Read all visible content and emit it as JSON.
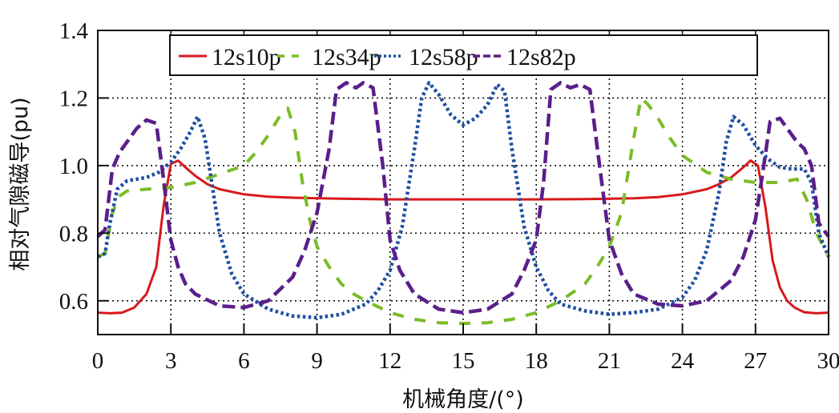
{
  "chart_data": {
    "type": "line",
    "title": "",
    "xlabel": "机械角度/(°)",
    "ylabel": "相对气隙磁导(pu)",
    "xlim": [
      0,
      30
    ],
    "ylim": [
      0.5,
      1.4
    ],
    "xticks": [
      0,
      3,
      6,
      9,
      12,
      15,
      18,
      21,
      24,
      27,
      30
    ],
    "yticks": [
      0.6,
      0.8,
      1.0,
      1.2,
      1.4
    ],
    "xtick_labels": [
      "0",
      "3",
      "6",
      "9",
      "12",
      "15",
      "18",
      "21",
      "24",
      "27",
      "30"
    ],
    "ytick_labels": [
      "0.6",
      "0.8",
      "1.0",
      "1.2",
      "1.4"
    ],
    "grid": true,
    "legend_position": "top, horizontal, inside",
    "series": [
      {
        "name": "12s10p",
        "color": "#d7191c",
        "style": "solid",
        "x": [
          0,
          0.5,
          1,
          1.5,
          2,
          2.4,
          2.7,
          3,
          3.3,
          3.6,
          4,
          4.5,
          5,
          6,
          7,
          8,
          10,
          12,
          15,
          18,
          20,
          22,
          23,
          24,
          25,
          25.5,
          26,
          26.5,
          26.8,
          27.1,
          27.4,
          27.7,
          28,
          28.3,
          28.6,
          29,
          29.5,
          30
        ],
        "y": [
          0.565,
          0.563,
          0.565,
          0.58,
          0.62,
          0.7,
          0.88,
          1.005,
          1.015,
          0.995,
          0.97,
          0.945,
          0.93,
          0.915,
          0.908,
          0.905,
          0.902,
          0.9,
          0.9,
          0.9,
          0.901,
          0.903,
          0.907,
          0.915,
          0.93,
          0.945,
          0.965,
          0.995,
          1.015,
          1.0,
          0.88,
          0.72,
          0.64,
          0.6,
          0.58,
          0.566,
          0.563,
          0.565
        ]
      },
      {
        "name": "12s34p",
        "color": "#7cbb27",
        "style": "dashed",
        "x": [
          0,
          0.3,
          0.6,
          0.9,
          1.2,
          2,
          3,
          4,
          5,
          6,
          6.5,
          7,
          7.5,
          7.8,
          8.1,
          8.4,
          8.7,
          9,
          9.5,
          10,
          10.5,
          11,
          12,
          13,
          14,
          15,
          16,
          17,
          18,
          19,
          20,
          20.5,
          21,
          21.5,
          22,
          22.3,
          22.6,
          23,
          23.5,
          24,
          25,
          26,
          27,
          28,
          28.7,
          29.1,
          29.5,
          30
        ],
        "y": [
          0.73,
          0.74,
          0.86,
          0.91,
          0.925,
          0.93,
          0.935,
          0.95,
          0.975,
          1.0,
          1.04,
          1.09,
          1.15,
          1.17,
          1.1,
          0.95,
          0.84,
          0.76,
          0.7,
          0.65,
          0.62,
          0.6,
          0.565,
          0.545,
          0.535,
          0.533,
          0.535,
          0.545,
          0.565,
          0.6,
          0.65,
          0.7,
          0.76,
          0.86,
          1.08,
          1.2,
          1.18,
          1.14,
          1.08,
          1.03,
          0.98,
          0.96,
          0.95,
          0.95,
          0.96,
          0.9,
          0.8,
          0.73
        ]
      },
      {
        "name": "12s58p",
        "color": "#1f4fa0",
        "style": "dotted",
        "x": [
          0,
          0.3,
          0.5,
          0.8,
          1.2,
          2,
          2.5,
          3,
          3.4,
          3.8,
          4.1,
          4.4,
          4.7,
          5,
          5.5,
          6,
          7,
          8,
          9,
          10,
          11,
          11.5,
          12,
          12.5,
          13,
          13.3,
          13.6,
          14,
          14.5,
          15,
          15.5,
          16,
          16.4,
          16.7,
          17,
          17.5,
          18,
          18.5,
          19,
          20,
          21,
          22,
          23,
          24,
          24.5,
          25,
          25.5,
          25.8,
          26.1,
          26.5,
          27,
          27.5,
          28,
          28.5,
          29,
          29.3,
          29.6,
          30
        ],
        "y": [
          0.73,
          0.74,
          0.83,
          0.93,
          0.955,
          0.965,
          0.98,
          1.01,
          1.05,
          1.1,
          1.145,
          1.08,
          0.94,
          0.8,
          0.68,
          0.62,
          0.575,
          0.555,
          0.55,
          0.56,
          0.59,
          0.63,
          0.69,
          0.82,
          1.05,
          1.2,
          1.245,
          1.21,
          1.15,
          1.12,
          1.14,
          1.18,
          1.24,
          1.22,
          1.05,
          0.82,
          0.7,
          0.63,
          0.59,
          0.57,
          0.56,
          0.565,
          0.575,
          0.61,
          0.66,
          0.75,
          0.92,
          1.07,
          1.145,
          1.12,
          1.06,
          1.02,
          0.995,
          0.99,
          0.99,
          0.95,
          0.8,
          0.73
        ]
      },
      {
        "name": "12s82p",
        "color": "#5a1f8a",
        "style": "dash-dot",
        "x": [
          0,
          0.3,
          0.6,
          0.9,
          1.2,
          1.6,
          2,
          2.4,
          2.7,
          3,
          3.3,
          3.6,
          4,
          5,
          6,
          7,
          8,
          8.5,
          9,
          9.5,
          9.8,
          10.2,
          10.6,
          10.9,
          11.3,
          11.7,
          12,
          12.4,
          13,
          14,
          15,
          16,
          17,
          17.5,
          18,
          18.3,
          18.6,
          19,
          19.4,
          19.8,
          20.2,
          20.6,
          21,
          21.5,
          22,
          23,
          24,
          25,
          26,
          26.5,
          27,
          27.3,
          27.6,
          28,
          28.4,
          28.7,
          29,
          29.3,
          29.6,
          30
        ],
        "y": [
          0.79,
          0.81,
          0.99,
          1.04,
          1.07,
          1.11,
          1.135,
          1.125,
          0.96,
          0.78,
          0.7,
          0.65,
          0.62,
          0.585,
          0.58,
          0.6,
          0.67,
          0.75,
          0.86,
          1.05,
          1.225,
          1.245,
          1.23,
          1.245,
          1.23,
          1.0,
          0.78,
          0.69,
          0.62,
          0.575,
          0.565,
          0.575,
          0.62,
          0.69,
          0.78,
          0.95,
          1.225,
          1.245,
          1.23,
          1.24,
          1.225,
          1.0,
          0.78,
          0.68,
          0.62,
          0.59,
          0.585,
          0.6,
          0.66,
          0.73,
          0.84,
          0.98,
          1.13,
          1.14,
          1.1,
          1.07,
          1.05,
          1.0,
          0.83,
          0.79
        ]
      }
    ]
  },
  "legend": {
    "items": [
      {
        "label": "12s10p"
      },
      {
        "label": "12s34p"
      },
      {
        "label": "12s58p"
      },
      {
        "label": "12s82p"
      }
    ]
  },
  "axes": {
    "x_title": "机械角度/(°)",
    "y_title": "相对气隙磁导(pu)"
  }
}
